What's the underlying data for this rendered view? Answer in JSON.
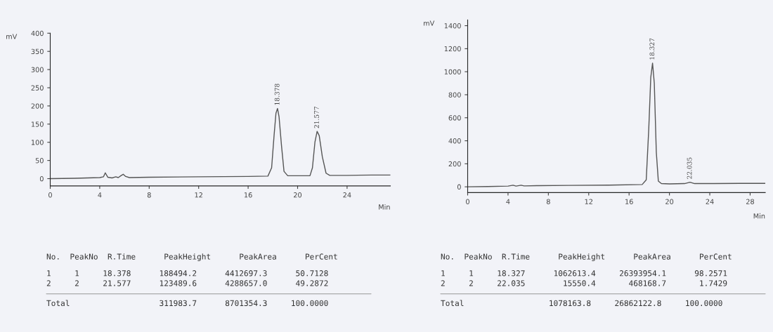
{
  "chart_data": [
    {
      "type": "line",
      "ylabel": "mV",
      "xlabel": "Min",
      "series": [
        {
          "color": "#555555",
          "x": [
            0,
            2,
            4,
            4.3,
            4.45,
            4.65,
            5.0,
            5.3,
            5.5,
            5.75,
            5.9,
            6.1,
            6.4,
            8,
            12,
            16,
            17.6,
            17.9,
            18.1,
            18.25,
            18.378,
            18.5,
            18.7,
            18.9,
            19.2,
            20,
            21.0,
            21.2,
            21.4,
            21.577,
            21.75,
            22.0,
            22.3,
            22.6,
            24,
            26,
            27.5
          ],
          "values": [
            0,
            1,
            3,
            5,
            16,
            4,
            2,
            5,
            3,
            9,
            12,
            6,
            3,
            4,
            5,
            6,
            7,
            30,
            120,
            180,
            193,
            170,
            90,
            20,
            8,
            8,
            8,
            30,
            100,
            130,
            118,
            60,
            15,
            9,
            9,
            10,
            10
          ]
        }
      ],
      "xlim": [
        0,
        27.5
      ],
      "ylim": [
        -20,
        400
      ],
      "xticks": [
        0,
        4,
        8,
        12,
        16,
        20,
        24
      ],
      "yticks": [
        0,
        50,
        100,
        150,
        200,
        250,
        300,
        350,
        400
      ],
      "annotations": [
        {
          "text": "18.378",
          "x": 18.378,
          "y": 193
        },
        {
          "text": "21.577",
          "x": 21.577,
          "y": 130
        },
        "No.  PeakNo  R.Time      PeakHeight      PeakArea      PerCent",
        "1     1     18.378      188494.2      4412697.3      50.7128",
        "2     2     21.577      123489.6      4288657.0      49.2872",
        "Total                   311983.7      8701354.3     100.0000"
      ]
    },
    {
      "type": "line",
      "ylabel": "mV",
      "xlabel": "Min",
      "series": [
        {
          "color": "#555555",
          "x": [
            0,
            2,
            4,
            4.5,
            4.8,
            5.3,
            5.6,
            7,
            10,
            14,
            17.3,
            17.7,
            17.95,
            18.15,
            18.327,
            18.5,
            18.7,
            18.9,
            19.2,
            20,
            21.5,
            22.035,
            22.5,
            24,
            27,
            29.5
          ],
          "values": [
            0,
            2,
            6,
            14,
            6,
            14,
            8,
            10,
            12,
            15,
            20,
            60,
            500,
            950,
            1075,
            900,
            300,
            50,
            28,
            25,
            28,
            40,
            28,
            28,
            30,
            30
          ]
        }
      ],
      "xlim": [
        0,
        29.5
      ],
      "ylim": [
        -50,
        1450
      ],
      "xticks": [
        0,
        4,
        8,
        12,
        16,
        20,
        24,
        28
      ],
      "yticks": [
        0,
        200,
        400,
        600,
        800,
        1000,
        1200,
        1400
      ],
      "annotations": [
        {
          "text": "18.327",
          "x": 18.327,
          "y": 1075
        },
        {
          "text": "22.035",
          "x": 22.035,
          "y": 40
        },
        "No.  PeakNo  R.Time      PeakHeight      PeakArea      PerCent",
        "1     1     18.327      1062613.4     26393954.1      98.2571",
        "2     2     22.035        15550.4       468168.7       1.7429",
        "Total                  1078163.8     26862122.8     100.0000"
      ]
    }
  ]
}
